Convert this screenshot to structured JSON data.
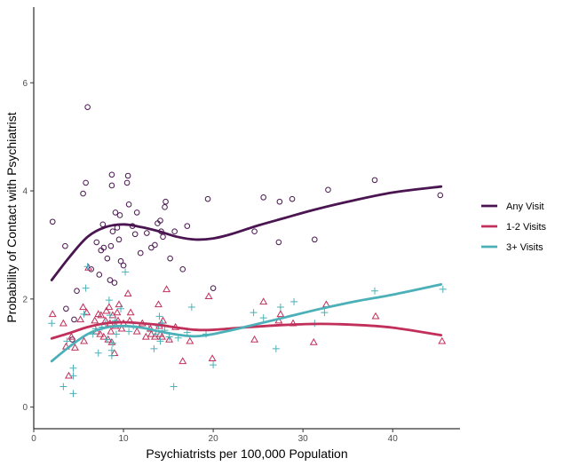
{
  "chart_data": {
    "type": "scatter",
    "title": "",
    "xlabel": "Psychiatrists per 100,000 Population",
    "ylabel": "Probability of Contact with Psychiatrist",
    "xlim": [
      0,
      47.5
    ],
    "ylim": [
      -0.4,
      7.4
    ],
    "xticks": [
      0,
      10,
      20,
      30,
      40
    ],
    "yticks": [
      0,
      2,
      4,
      6
    ],
    "grid": false,
    "legend_position": "right",
    "series": [
      {
        "name": "Any Visit",
        "marker": "circle",
        "color": "#4a1550",
        "points": [
          [
            2.1,
            3.43
          ],
          [
            3.5,
            2.98
          ],
          [
            3.6,
            1.82
          ],
          [
            4.3,
            1.25
          ],
          [
            4.5,
            1.62
          ],
          [
            4.8,
            2.15
          ],
          [
            5.5,
            3.95
          ],
          [
            5.8,
            4.15
          ],
          [
            6.0,
            5.55
          ],
          [
            6.4,
            2.55
          ],
          [
            7.0,
            3.05
          ],
          [
            7.3,
            2.45
          ],
          [
            7.5,
            2.9
          ],
          [
            7.7,
            3.38
          ],
          [
            7.8,
            2.95
          ],
          [
            8.2,
            2.75
          ],
          [
            8.5,
            2.35
          ],
          [
            8.6,
            2.98
          ],
          [
            8.7,
            4.3
          ],
          [
            8.7,
            4.1
          ],
          [
            8.8,
            3.25
          ],
          [
            9.0,
            2.3
          ],
          [
            9.1,
            3.6
          ],
          [
            9.3,
            3.32
          ],
          [
            9.5,
            3.1
          ],
          [
            9.6,
            3.55
          ],
          [
            9.7,
            2.7
          ],
          [
            10.0,
            2.62
          ],
          [
            10.4,
            4.15
          ],
          [
            10.5,
            4.28
          ],
          [
            10.6,
            3.75
          ],
          [
            11.0,
            3.35
          ],
          [
            11.3,
            3.2
          ],
          [
            11.5,
            3.6
          ],
          [
            11.9,
            2.85
          ],
          [
            12.6,
            3.22
          ],
          [
            13.1,
            2.95
          ],
          [
            13.5,
            3.0
          ],
          [
            13.8,
            3.4
          ],
          [
            14.1,
            3.45
          ],
          [
            14.2,
            3.25
          ],
          [
            14.4,
            3.15
          ],
          [
            14.6,
            3.7
          ],
          [
            14.7,
            3.8
          ],
          [
            15.2,
            2.75
          ],
          [
            15.7,
            3.25
          ],
          [
            16.6,
            2.55
          ],
          [
            17.1,
            3.35
          ],
          [
            19.4,
            3.85
          ],
          [
            20.0,
            2.2
          ],
          [
            24.6,
            3.25
          ],
          [
            25.6,
            3.88
          ],
          [
            27.3,
            3.05
          ],
          [
            27.4,
            3.8
          ],
          [
            28.8,
            3.85
          ],
          [
            31.3,
            3.1
          ],
          [
            32.8,
            4.02
          ],
          [
            38.0,
            4.2
          ],
          [
            45.3,
            3.92
          ]
        ]
      },
      {
        "name": "1-2 Visits",
        "marker": "triangle",
        "color": "#c0305b",
        "points": [
          [
            2.1,
            1.72
          ],
          [
            3.3,
            1.55
          ],
          [
            3.6,
            1.12
          ],
          [
            3.9,
            0.58
          ],
          [
            4.2,
            1.3
          ],
          [
            4.6,
            1.1
          ],
          [
            5.2,
            1.62
          ],
          [
            5.5,
            1.85
          ],
          [
            5.6,
            1.22
          ],
          [
            5.9,
            1.75
          ],
          [
            6.1,
            2.58
          ],
          [
            6.8,
            1.6
          ],
          [
            7.0,
            1.4
          ],
          [
            7.2,
            1.72
          ],
          [
            7.4,
            1.35
          ],
          [
            7.5,
            1.7
          ],
          [
            7.8,
            1.3
          ],
          [
            8.0,
            1.6
          ],
          [
            8.1,
            1.78
          ],
          [
            8.3,
            1.25
          ],
          [
            8.4,
            1.85
          ],
          [
            8.5,
            1.55
          ],
          [
            8.6,
            1.4
          ],
          [
            8.7,
            1.2
          ],
          [
            8.8,
            1.7
          ],
          [
            9.0,
            1.0
          ],
          [
            9.1,
            1.5
          ],
          [
            9.3,
            1.75
          ],
          [
            9.4,
            1.6
          ],
          [
            9.5,
            1.9
          ],
          [
            9.8,
            1.45
          ],
          [
            10.0,
            1.55
          ],
          [
            10.5,
            2.1
          ],
          [
            10.7,
            1.6
          ],
          [
            10.8,
            1.75
          ],
          [
            11.5,
            1.4
          ],
          [
            12.1,
            1.55
          ],
          [
            12.5,
            1.3
          ],
          [
            13.0,
            1.45
          ],
          [
            13.1,
            1.35
          ],
          [
            13.5,
            1.3
          ],
          [
            13.9,
            1.9
          ],
          [
            14.0,
            1.5
          ],
          [
            14.1,
            1.35
          ],
          [
            14.3,
            1.3
          ],
          [
            14.4,
            1.6
          ],
          [
            14.8,
            2.18
          ],
          [
            15.1,
            1.25
          ],
          [
            15.8,
            1.48
          ],
          [
            16.6,
            0.85
          ],
          [
            17.4,
            1.22
          ],
          [
            19.5,
            2.05
          ],
          [
            19.9,
            0.9
          ],
          [
            24.6,
            1.25
          ],
          [
            25.6,
            1.95
          ],
          [
            27.3,
            1.6
          ],
          [
            27.5,
            1.72
          ],
          [
            28.9,
            1.55
          ],
          [
            31.2,
            1.2
          ],
          [
            32.6,
            1.9
          ],
          [
            38.1,
            1.68
          ],
          [
            45.5,
            1.22
          ]
        ]
      },
      {
        "name": "3+ Visits",
        "marker": "plus",
        "color": "#4bb0b8",
        "points": [
          [
            2.0,
            1.55
          ],
          [
            3.3,
            0.38
          ],
          [
            3.7,
            1.22
          ],
          [
            4.4,
            0.72
          ],
          [
            4.4,
            0.25
          ],
          [
            4.4,
            0.58
          ],
          [
            5.6,
            1.72
          ],
          [
            5.8,
            2.2
          ],
          [
            6.0,
            2.6
          ],
          [
            6.6,
            1.35
          ],
          [
            6.9,
            1.45
          ],
          [
            7.2,
            1.0
          ],
          [
            7.6,
            1.48
          ],
          [
            8.0,
            1.55
          ],
          [
            8.2,
            1.25
          ],
          [
            8.4,
            1.98
          ],
          [
            8.5,
            1.7
          ],
          [
            8.7,
            0.95
          ],
          [
            8.7,
            1.05
          ],
          [
            8.8,
            1.18
          ],
          [
            9.0,
            1.55
          ],
          [
            9.1,
            1.6
          ],
          [
            9.2,
            1.35
          ],
          [
            9.7,
            1.82
          ],
          [
            10.2,
            2.5
          ],
          [
            10.6,
            1.4
          ],
          [
            11.1,
            1.5
          ],
          [
            12.8,
            1.45
          ],
          [
            13.4,
            1.08
          ],
          [
            13.6,
            1.35
          ],
          [
            13.9,
            1.5
          ],
          [
            14.0,
            1.68
          ],
          [
            14.1,
            1.22
          ],
          [
            14.3,
            1.55
          ],
          [
            14.6,
            1.42
          ],
          [
            15.1,
            1.3
          ],
          [
            15.6,
            0.38
          ],
          [
            16.1,
            1.28
          ],
          [
            17.1,
            1.38
          ],
          [
            17.6,
            1.85
          ],
          [
            19.2,
            1.35
          ],
          [
            20.0,
            0.78
          ],
          [
            24.5,
            1.75
          ],
          [
            25.6,
            1.65
          ],
          [
            27.0,
            1.08
          ],
          [
            27.5,
            1.85
          ],
          [
            29.0,
            1.95
          ],
          [
            31.3,
            1.55
          ],
          [
            32.4,
            1.75
          ],
          [
            38.0,
            2.15
          ],
          [
            45.6,
            2.18
          ]
        ]
      }
    ],
    "smooth_lines": [
      {
        "series": "Any Visit",
        "color": "#4a1550",
        "x": [
          2,
          4,
          6,
          8,
          10,
          12,
          14,
          16,
          18,
          20,
          22,
          25,
          28,
          31,
          35,
          40,
          45.4
        ],
        "y": [
          2.35,
          2.78,
          3.15,
          3.33,
          3.38,
          3.33,
          3.25,
          3.15,
          3.1,
          3.12,
          3.2,
          3.36,
          3.5,
          3.64,
          3.8,
          3.97,
          4.08
        ]
      },
      {
        "series": "1-2 Visits",
        "color": "#c0305b",
        "x": [
          2,
          4,
          6,
          8,
          10,
          12,
          14,
          16,
          18,
          20,
          24,
          28,
          32,
          36,
          40,
          45.4
        ],
        "y": [
          1.27,
          1.37,
          1.48,
          1.55,
          1.57,
          1.55,
          1.52,
          1.47,
          1.43,
          1.43,
          1.48,
          1.52,
          1.54,
          1.52,
          1.47,
          1.33
        ]
      },
      {
        "series": "3+ Visits",
        "color": "#4bb0b8",
        "x": [
          2,
          4,
          6,
          8,
          10,
          12,
          14,
          16,
          18,
          20,
          24,
          28,
          32,
          36,
          40,
          45.4
        ],
        "y": [
          0.85,
          1.12,
          1.35,
          1.47,
          1.5,
          1.47,
          1.4,
          1.34,
          1.31,
          1.35,
          1.5,
          1.66,
          1.82,
          1.96,
          2.08,
          2.27
        ]
      }
    ]
  }
}
